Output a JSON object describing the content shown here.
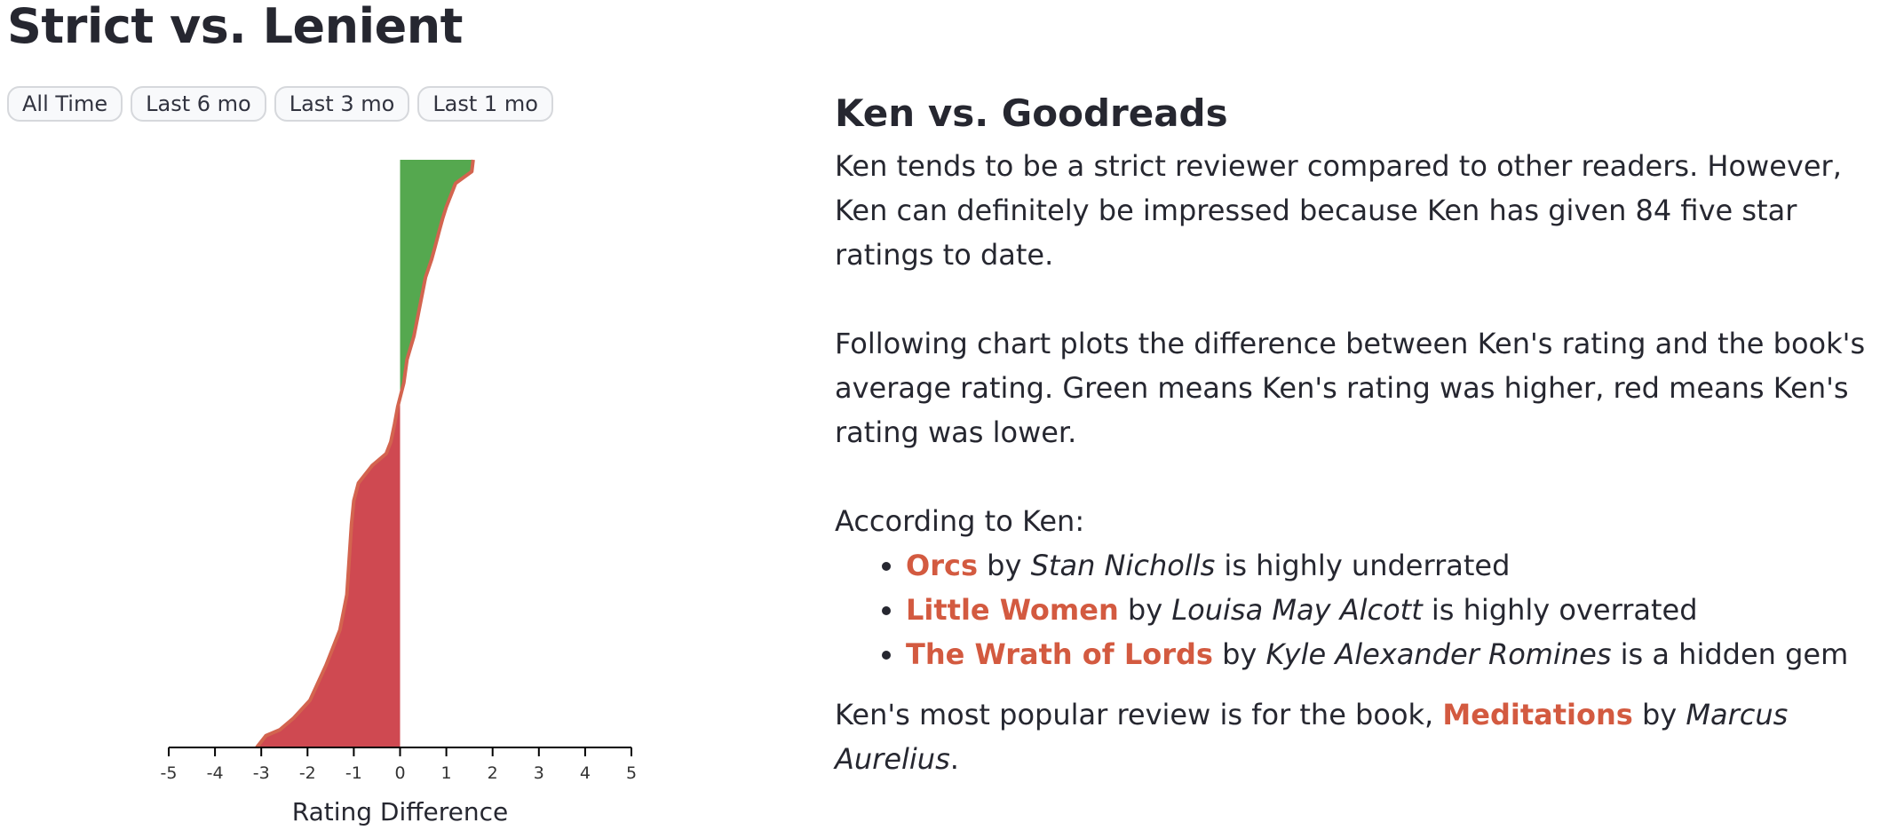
{
  "page_title": "Strict vs. Lenient",
  "time_filters": [
    "All Time",
    "Last 6 mo",
    "Last 3 mo",
    "Last 1 mo"
  ],
  "colors": {
    "positive": "#55a84f",
    "negative": "#cf4951",
    "outline": "#d3644f",
    "link": "#d35a40",
    "text": "#262730"
  },
  "comparison": {
    "title": "Ken vs. Goodreads",
    "paragraph_1": "Ken tends to be a strict reviewer compared to other readers. However, Ken can definitely be impressed because Ken has given 84 five star ratings to date.",
    "paragraph_2": "Following chart plots the difference between Ken's rating and the book's average rating. Green means Ken's rating was higher, red means Ken's rating was lower.",
    "according_label": "According to Ken:",
    "items": [
      {
        "title": "Orcs",
        "by": "by",
        "author": "Stan Nicholls",
        "verdict": "is highly underrated"
      },
      {
        "title": "Little Women",
        "by": "by",
        "author": "Louisa May Alcott",
        "verdict": "is highly overrated"
      },
      {
        "title": "The Wrath of Lords",
        "by": "by",
        "author": "Kyle Alexander Romines",
        "verdict": "is a hidden gem"
      }
    ],
    "popular_prefix": "Ken's most popular review is for the book,",
    "popular_title": "Meditations",
    "popular_by": "by",
    "popular_author": "Marcus Aurelius",
    "popular_suffix": "."
  },
  "chart_data": {
    "type": "area",
    "xlabel": "Rating Difference",
    "xlim": [
      -5,
      5
    ],
    "x_ticks": [
      -5,
      -4,
      -3,
      -2,
      -1,
      0,
      1,
      2,
      3,
      4,
      5
    ],
    "description_of_axes": "x = rating difference; y = books sorted by difference",
    "sorted_fraction": [
      0.0,
      0.02,
      0.04,
      0.06,
      0.08,
      0.1,
      0.12,
      0.15,
      0.17,
      0.2,
      0.24,
      0.3,
      0.34,
      0.38,
      0.42,
      0.45,
      0.48,
      0.5,
      0.52,
      0.55,
      0.58,
      0.62,
      0.68,
      0.74,
      0.8,
      0.86,
      0.92,
      0.95,
      0.97,
      0.98,
      0.99,
      1.0
    ],
    "rating_difference": [
      1.58,
      1.55,
      1.2,
      1.1,
      1.0,
      0.92,
      0.85,
      0.75,
      0.68,
      0.55,
      0.45,
      0.3,
      0.15,
      0.08,
      -0.05,
      -0.12,
      -0.2,
      -0.3,
      -0.6,
      -0.9,
      -1.0,
      -1.05,
      -1.1,
      -1.15,
      -1.3,
      -1.6,
      -1.95,
      -2.3,
      -2.6,
      -2.9,
      -3.0,
      -3.1
    ]
  }
}
